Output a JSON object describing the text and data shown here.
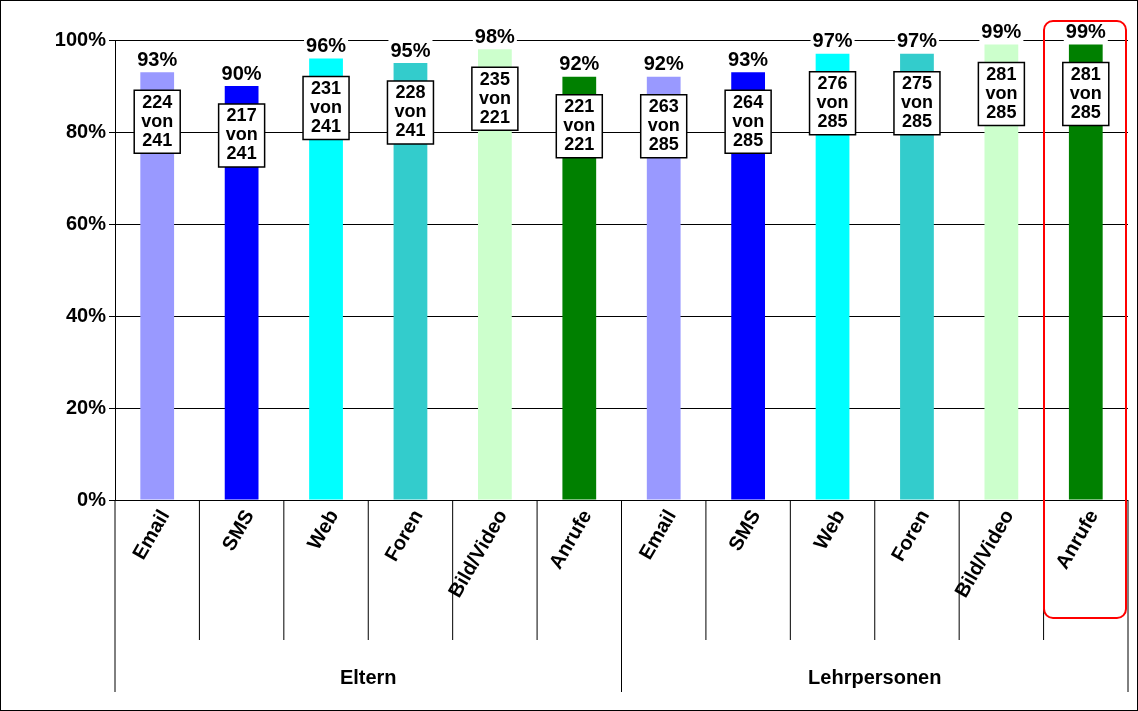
{
  "chart_data": {
    "type": "bar",
    "categories": [
      "Email",
      "SMS",
      "Web",
      "Foren",
      "Bild/Video",
      "Anrufe",
      "Email",
      "SMS",
      "Web",
      "Foren",
      "Bild/Video",
      "Anrufe"
    ],
    "values": [
      93,
      90,
      96,
      95,
      98,
      92,
      92,
      93,
      97,
      97,
      99,
      99
    ],
    "colors": [
      "#9999ff",
      "#0000ff",
      "#00ffff",
      "#33cccc",
      "#ccffcc",
      "#008000",
      "#9999ff",
      "#0000ff",
      "#00ffff",
      "#33cccc",
      "#ccffcc",
      "#008000"
    ],
    "value_labels": [
      "93%",
      "90%",
      "96%",
      "95%",
      "98%",
      "92%",
      "92%",
      "93%",
      "97%",
      "97%",
      "99%",
      "99%"
    ],
    "annotations": [
      "224\nvon\n241",
      "217\nvon\n241",
      "231\nvon\n241",
      "228\nvon\n241",
      "235\nvon\n221",
      "221\nvon\n221",
      "263\nvon\n285",
      "264\nvon\n285",
      "276\nvon\n285",
      "275\nvon\n285",
      "281\nvon\n285",
      "281\nvon\n285",
      "Eltern",
      "Lehrpersonen"
    ],
    "ylim": [
      0,
      100
    ],
    "yticks": [
      {
        "value": 0,
        "label": "0%"
      },
      {
        "value": 20,
        "label": "20%"
      },
      {
        "value": 40,
        "label": "40%"
      },
      {
        "value": 60,
        "label": "60%"
      },
      {
        "value": 80,
        "label": "80%"
      },
      {
        "value": 100,
        "label": "100%"
      }
    ],
    "grid": "y"
  }
}
